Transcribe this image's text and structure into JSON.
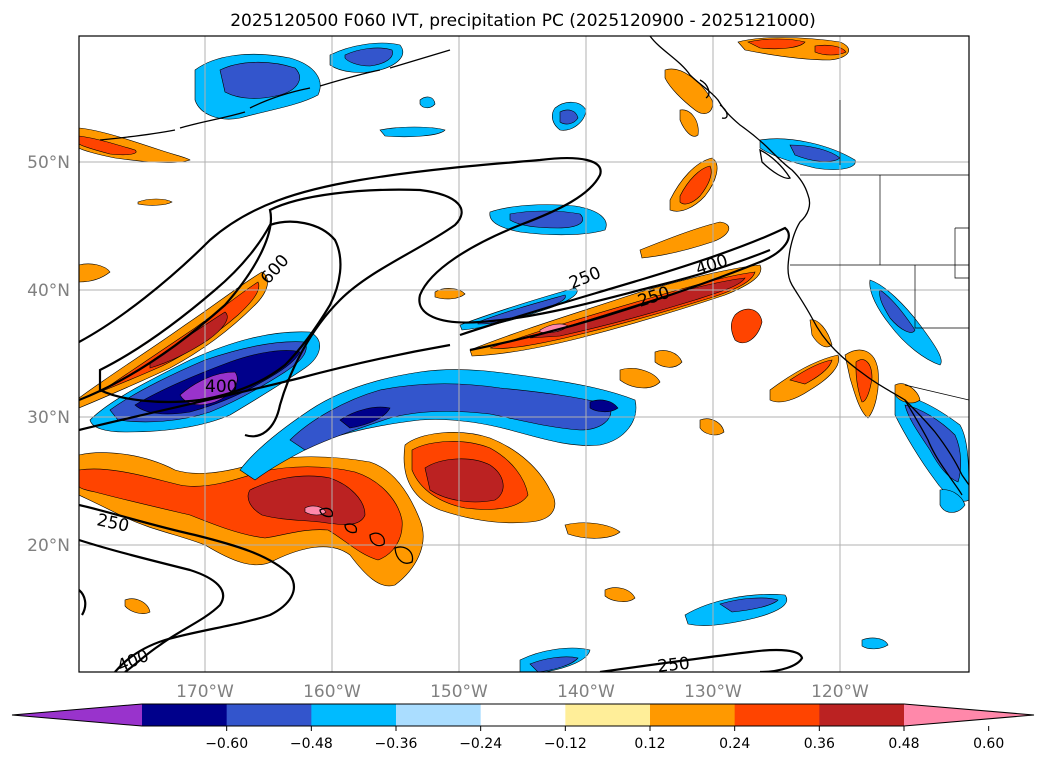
{
  "title": "2025120500 F060 IVT, precipitation PC (2025120900 - 2025121000)",
  "map": {
    "lat_labels": [
      "50°N",
      "40°N",
      "30°N",
      "20°N"
    ],
    "lon_labels": [
      "170°W",
      "160°W",
      "150°W",
      "140°W",
      "130°W",
      "120°W"
    ],
    "ivt_contour_labels": [
      {
        "id": "600-a",
        "text": "600"
      },
      {
        "id": "400-a",
        "text": "400"
      },
      {
        "id": "250-a",
        "text": "250"
      },
      {
        "id": "250-b",
        "text": "250"
      },
      {
        "id": "400-b",
        "text": "400"
      },
      {
        "id": "250-c",
        "text": "250"
      },
      {
        "id": "400-c",
        "text": "400"
      },
      {
        "id": "250-d",
        "text": "250"
      }
    ]
  },
  "colorbar": {
    "colors": [
      "#9933cc",
      "#00008b",
      "#3355cc",
      "#00bbff",
      "#aaddff",
      "#ffffff",
      "#ffee99",
      "#ff9900",
      "#ff4400",
      "#bb2222",
      "#ff88aa"
    ],
    "ticks": [
      "−0.60",
      "−0.48",
      "−0.36",
      "−0.24",
      "−0.12",
      "0.12",
      "0.24",
      "0.36",
      "0.48",
      "0.60"
    ]
  },
  "palette": {
    "purple": "#9933cc",
    "navy": "#00008b",
    "blue": "#3355cc",
    "cyan": "#00bbff",
    "orange": "#ff9900",
    "redorange": "#ff4400",
    "darkred": "#bb2222",
    "pink": "#ff88aa",
    "grid": "#b0b0b0",
    "contour": "#000000",
    "coast": "#000000"
  }
}
